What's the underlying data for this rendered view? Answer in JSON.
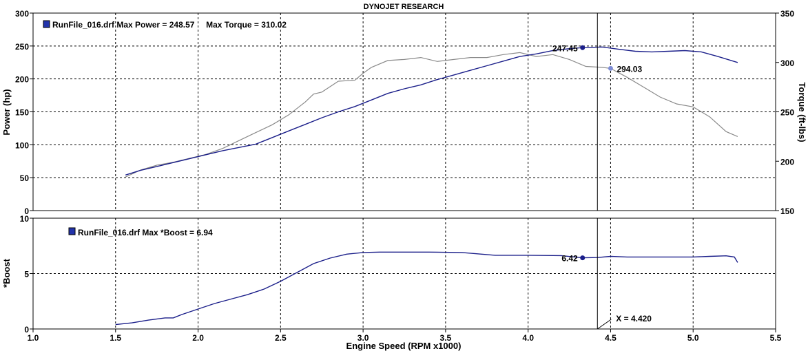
{
  "title": "DYNOJET RESEARCH",
  "colors": {
    "power": "#1b1f8a",
    "torque": "#8a8a8a",
    "boost": "#1b1f8a",
    "power_marker": "#1b1f8a",
    "torque_marker": "#7e8dd6",
    "legend_box": "#2233aa"
  },
  "chart_data": [
    {
      "type": "line",
      "panel": "top",
      "title": "DYNOJET RESEARCH",
      "xlabel": "Engine Speed (RPM x1000)",
      "ylabel": "Power (hp)",
      "y2label": "Torque (ft-lbs)",
      "xlim": [
        1.0,
        5.5
      ],
      "ylim": [
        0,
        300
      ],
      "y2lim": [
        150,
        350
      ],
      "x_ticks": [
        "1.0",
        "1.5",
        "2.0",
        "2.5",
        "3.0",
        "3.5",
        "4.0",
        "4.5",
        "5.0",
        "5.5"
      ],
      "y_ticks": [
        "0",
        "50",
        "100",
        "150",
        "200",
        "250",
        "300"
      ],
      "y2_ticks": [
        "150",
        "200",
        "250",
        "300",
        "350"
      ],
      "grid": true,
      "legend_text": "RunFile_016.drf Max Power = 248.57     Max Torque = 310.02",
      "series": [
        {
          "name": "Power",
          "axis": "left",
          "x": [
            1.56,
            1.65,
            1.75,
            1.85,
            1.95,
            2.05,
            2.15,
            2.25,
            2.35,
            2.45,
            2.55,
            2.65,
            2.75,
            2.85,
            2.95,
            3.05,
            3.15,
            3.25,
            3.35,
            3.45,
            3.55,
            3.65,
            3.75,
            3.85,
            3.95,
            4.05,
            4.15,
            4.25,
            4.33,
            4.4,
            4.45,
            4.55,
            4.65,
            4.75,
            4.85,
            4.95,
            5.05,
            5.15,
            5.27
          ],
          "y": [
            54,
            61,
            67,
            73,
            79,
            85,
            91,
            96,
            101,
            111,
            121,
            131,
            141,
            150,
            158,
            168,
            178,
            185,
            191,
            199,
            206,
            213,
            220,
            227,
            234,
            238,
            243,
            246,
            247.5,
            248,
            248.5,
            245,
            242,
            241,
            242,
            243,
            241,
            234,
            225
          ]
        },
        {
          "name": "Torque",
          "axis": "right",
          "x": [
            1.56,
            1.65,
            1.75,
            1.85,
            1.95,
            2.05,
            2.15,
            2.25,
            2.35,
            2.45,
            2.55,
            2.65,
            2.7,
            2.75,
            2.85,
            2.95,
            3.0,
            3.05,
            3.15,
            3.25,
            3.35,
            3.45,
            3.55,
            3.65,
            3.75,
            3.85,
            3.95,
            4.05,
            4.15,
            4.25,
            4.35,
            4.45,
            4.5,
            4.6,
            4.7,
            4.8,
            4.9,
            5.0,
            5.1,
            5.2,
            5.27
          ],
          "y": [
            184,
            191,
            196,
            199,
            203,
            207,
            213,
            221,
            229,
            237,
            247,
            260,
            268,
            270,
            281,
            282,
            289,
            295,
            302,
            303,
            305,
            301,
            303,
            305,
            305,
            308,
            310,
            306,
            308,
            303,
            296,
            295,
            294,
            285,
            275,
            265,
            258,
            255,
            245,
            230,
            225
          ]
        }
      ],
      "annotations": [
        {
          "label": "247.45",
          "x": 4.33,
          "y": 247.45,
          "axis": "left",
          "side": "left"
        },
        {
          "label": "294.03",
          "x": 4.5,
          "y": 294.03,
          "axis": "right",
          "side": "right"
        }
      ]
    },
    {
      "type": "line",
      "panel": "bottom",
      "xlabel": "Engine Speed (RPM x1000)",
      "ylabel": "*Boost",
      "xlim": [
        1.0,
        5.5
      ],
      "ylim": [
        0,
        10
      ],
      "x_ticks": [
        "1.0",
        "1.5",
        "2.0",
        "2.5",
        "3.0",
        "3.5",
        "4.0",
        "4.5",
        "5.0",
        "5.5"
      ],
      "y_ticks": [
        "0",
        "5",
        "10"
      ],
      "grid": true,
      "legend_text": "RunFile_016.drf Max *Boost = 6.94",
      "series": [
        {
          "name": "*Boost",
          "x": [
            1.5,
            1.6,
            1.7,
            1.8,
            1.85,
            1.9,
            2.0,
            2.1,
            2.2,
            2.3,
            2.4,
            2.5,
            2.6,
            2.7,
            2.8,
            2.9,
            3.0,
            3.1,
            3.2,
            3.4,
            3.6,
            3.8,
            4.0,
            4.2,
            4.33,
            4.42,
            4.5,
            4.6,
            4.8,
            5.0,
            5.1,
            5.2,
            5.25,
            5.27
          ],
          "y": [
            0.4,
            0.55,
            0.8,
            1.0,
            1.0,
            1.3,
            1.8,
            2.3,
            2.7,
            3.1,
            3.6,
            4.3,
            5.1,
            5.9,
            6.4,
            6.75,
            6.9,
            6.94,
            6.94,
            6.94,
            6.9,
            6.65,
            6.65,
            6.62,
            6.42,
            6.45,
            6.55,
            6.5,
            6.5,
            6.5,
            6.55,
            6.6,
            6.5,
            6.0
          ]
        }
      ],
      "annotations": [
        {
          "label": "6.42",
          "x": 4.33,
          "y": 6.42,
          "side": "left"
        }
      ]
    }
  ],
  "cursor": {
    "x": 4.42,
    "label": "X = 4.420"
  }
}
